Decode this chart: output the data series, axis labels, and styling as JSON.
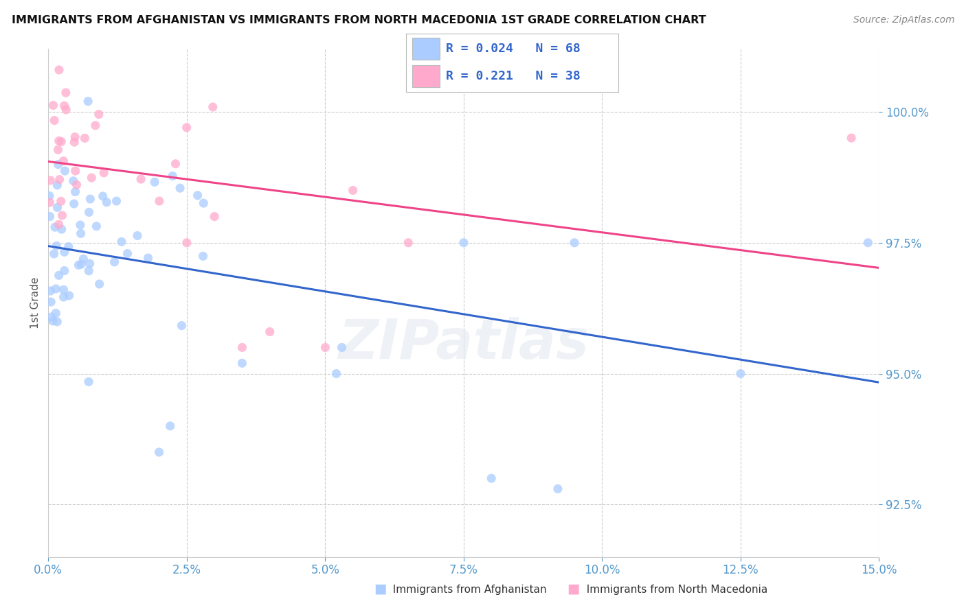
{
  "title": "IMMIGRANTS FROM AFGHANISTAN VS IMMIGRANTS FROM NORTH MACEDONIA 1ST GRADE CORRELATION CHART",
  "source": "Source: ZipAtlas.com",
  "ylabel": "1st Grade",
  "watermark": "ZIPatlas",
  "xlim": [
    0.0,
    15.0
  ],
  "ylim": [
    91.5,
    101.2
  ],
  "yticks": [
    92.5,
    95.0,
    97.5,
    100.0
  ],
  "ytick_labels": [
    "92.5%",
    "95.0%",
    "97.5%",
    "100.0%"
  ],
  "xticks": [
    0.0,
    2.5,
    5.0,
    7.5,
    10.0,
    12.5,
    15.0
  ],
  "xtick_labels": [
    "0.0%",
    "2.5%",
    "5.0%",
    "7.5%",
    "10.0%",
    "12.5%",
    "15.0%"
  ],
  "series": [
    {
      "name": "Immigrants from Afghanistan",
      "color": "#aaccff",
      "R": 0.024,
      "N": 68,
      "trend_color": "#3366cc"
    },
    {
      "name": "Immigrants from North Macedonia",
      "color": "#ffaacc",
      "R": 0.221,
      "N": 38,
      "trend_color": "#ee4488"
    }
  ],
  "title_color": "#111111",
  "tick_color": "#5599cc",
  "gridline_color": "#cccccc",
  "background_color": "#ffffff"
}
